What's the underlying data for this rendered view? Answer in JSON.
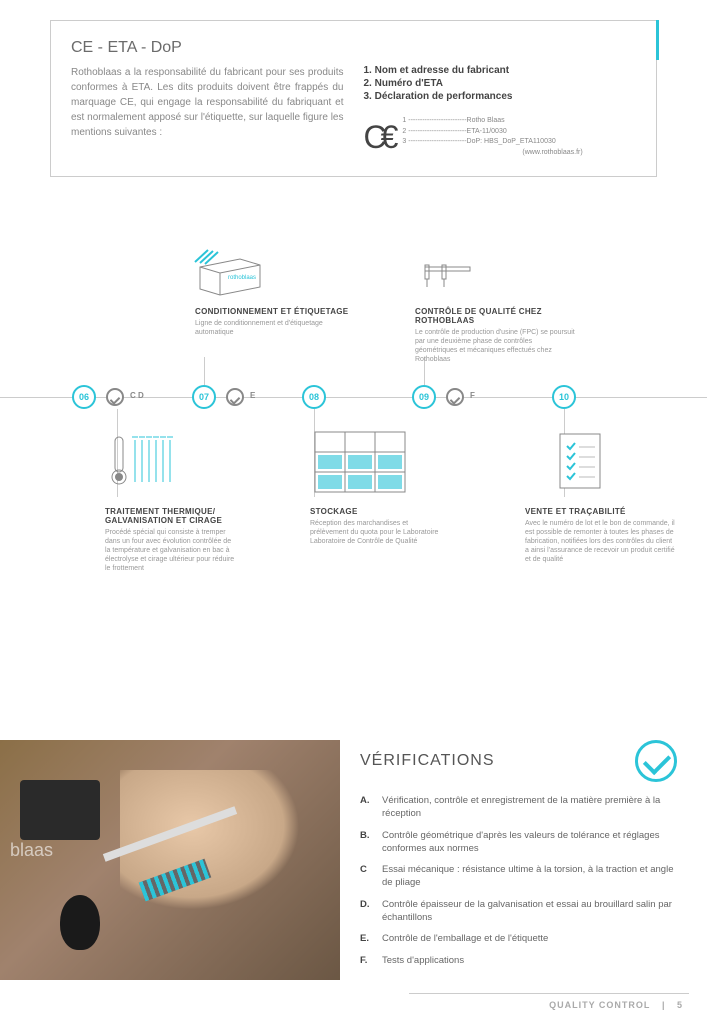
{
  "top": {
    "title": "CE - ETA - DoP",
    "intro": "Rothoblaas a la responsabilité du fabricant pour ses produits conformes à ETA.\nLes dits produits doivent être frappés du marquage CE, qui engage la responsabilité du fabriquant et est normalement apposé sur l'étiquette, sur laquelle figure les mentions suivantes :",
    "list1": "1.  Nom et adresse du fabricant",
    "list2": "2.  Numéro d'ETA",
    "list3": "3.  Déclaration de performances",
    "ce1": "1 -------------------------Rotho Blaas",
    "ce2": "2 -------------------------ETA-11/0030",
    "ce3": "3 -------------------------DoP: HBS_DoP_ETA110030",
    "ce4": "(www.rothoblaas.fr)"
  },
  "nodes": {
    "n06": "06",
    "n07": "07",
    "n08": "08",
    "n09": "09",
    "n10": "10"
  },
  "labels": {
    "l1": "C D",
    "l2": "E",
    "l3": "F"
  },
  "callouts": {
    "top1": {
      "h": "CONDITIONNEMENT ET ÉTIQUETAGE",
      "p": "Ligne de conditionnement et d'étiquetage automatique"
    },
    "top2": {
      "h": "CONTRÔLE DE QUALITÉ CHEZ ROTHOBLAAS",
      "p": "Le contrôle de production d'usine (FPC) se poursuit par une deuxième phase de contrôles géométriques et mécaniques effectués chez Rothoblaas"
    },
    "bot1": {
      "h": "TRAITEMENT THERMIQUE/ GALVANISATION ET CIRAGE",
      "p": "Procédé spécial qui consiste à tremper dans un four avec évolution contrôlée de la température et galvanisation en bac à électrolyse et cirage ultérieur pour réduire le frottement"
    },
    "bot2": {
      "h": "STOCKAGE",
      "p": "Réception des marchandises et prélèvement du quota pour le Laboratoire Laboratoire de Contrôle de Qualité"
    },
    "bot3": {
      "h": "VENTE ET TRAÇABILITÉ",
      "p": "Avec le numéro de lot et le bon de commande, il est possible de remonter à toutes les phases de fabrication, notifiées lors des contrôles du client a ainsi l'assurance de recevoir un produit certifié et de qualité"
    }
  },
  "verif": {
    "title": "VÉRIFICATIONS",
    "items": [
      {
        "k": "A.",
        "t": "Vérification, contrôle et enregistrement de la matière première à la réception"
      },
      {
        "k": "B.",
        "t": "Contrôle géométrique d'après les valeurs de tolérance et réglages conformes aux normes"
      },
      {
        "k": "C",
        "t": "Essai mécanique : résistance ultime à la torsion, à la traction et angle de pliage"
      },
      {
        "k": "D.",
        "t": "Contrôle épaisseur de la galvanisation et essai au brouillard salin par échantillons"
      },
      {
        "k": "E.",
        "t": "Contrôle de l'emballage et de l'étiquette"
      },
      {
        "k": "F.",
        "t": "Tests d'applications"
      }
    ]
  },
  "photo_label": "blaas",
  "footer": {
    "section": "QUALITY CONTROL",
    "page": "5"
  },
  "colors": {
    "accent": "#2bc4d8"
  }
}
